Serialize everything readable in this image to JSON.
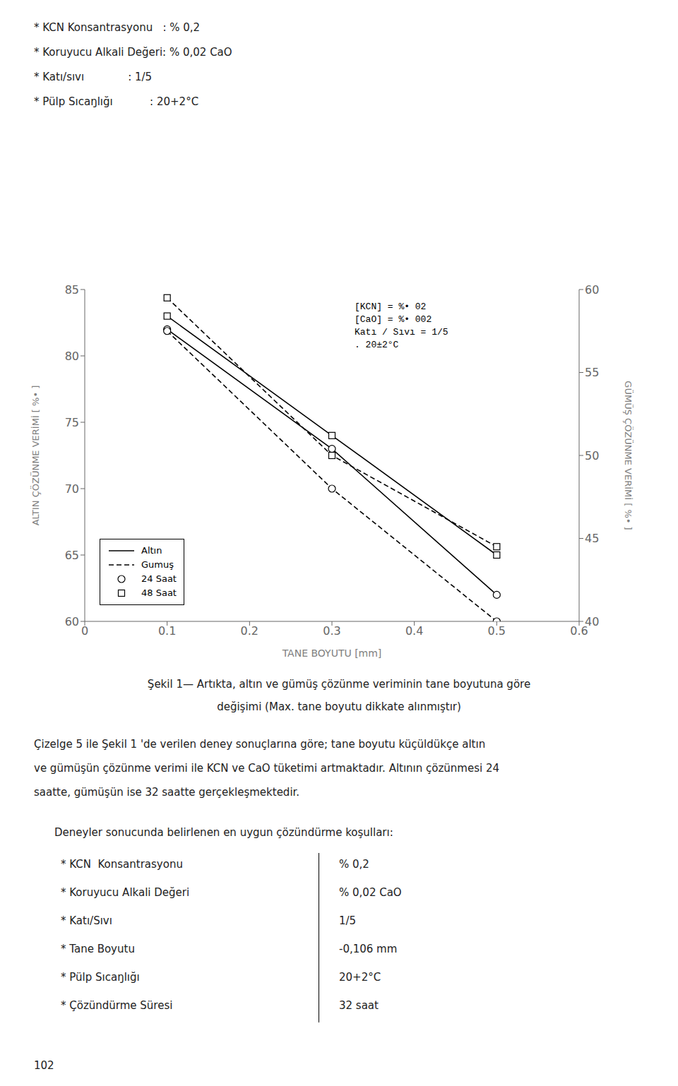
{
  "chart_data": {
    "type": "line",
    "xlabel": "TANE   BOYUTU   [mm]",
    "ylabel": "ALTIN ÇÖZÜNME  VERİMİ  [ %• ]",
    "y2label": "GÜMÜŞ ÇÖZÜNME VERİMİ  [ %• ]",
    "xlim": [
      0,
      0.6
    ],
    "xticks": [
      0,
      0.1,
      0.2,
      0.3,
      0.4,
      0.5,
      0.6
    ],
    "ylim": [
      60,
      85
    ],
    "yticks": [
      60,
      65,
      70,
      75,
      80,
      85
    ],
    "y2lim": [
      40,
      60
    ],
    "y2ticks": [
      40,
      45,
      50,
      55,
      60
    ],
    "grid": false,
    "legend": "lower left",
    "series": [
      {
        "x": [
          0.1,
          0.3,
          0.5
        ],
        "values": [
          83.0,
          74.0,
          65.0
        ],
        "axis": "y",
        "color": "#000000",
        "marker": "square",
        "line_style": "solid"
      },
      {
        "x": [
          0.1,
          0.3,
          0.5
        ],
        "values": [
          82.0,
          73.0,
          62.0
        ],
        "axis": "y",
        "color": "#000000",
        "marker": "circle",
        "line_style": "solid"
      },
      {
        "x": [
          0.1,
          0.3,
          0.5
        ],
        "values": [
          59.5,
          50.0,
          44.5
        ],
        "axis": "y2",
        "color": "#000000",
        "marker": "square",
        "line_style": "dashed"
      },
      {
        "x": [
          0.1,
          0.3,
          0.5
        ],
        "values": [
          57.5,
          48.0,
          40.0
        ],
        "axis": "y2",
        "color": "#000000",
        "marker": "circle",
        "line_style": "dashed"
      }
    ],
    "legend_entries": [
      {
        "name": "Altın",
        "line_style": "solid"
      },
      {
        "name": "Gumuş",
        "line_style": "dashed"
      },
      {
        "name": "24 Saat",
        "marker": "circle"
      },
      {
        "name": "48 Saat",
        "marker": "square"
      }
    ],
    "annotations": [
      "[KCN] = %• 02",
      "[CaO] = %• 002",
      "Katı / Sıvı = 1/5",
      ". 20±2°C"
    ]
  },
  "header_lines": [
    "* KCN Konsantrasyonu   : % 0,2",
    "* Koruyucu Alkali Değeri: % 0,02 CaO",
    "* Katı/sıvı             : 1/5",
    "* Pülp Sıcaŋlığı           : 20+2°C"
  ],
  "caption": [
    "Şekil 1— Artıkta, altın ve gümüş çözünme veriminin tane boyutuna göre",
    "değişimi (Max. tane boyutu dikkate alınmıştır)"
  ],
  "body_text": [
    "Çizelge 5 ile Şekil 1 'de verilen deney sonuçlarına göre; tane boyutu küçüldükçe altın",
    "ve gümüşün çözünme verimi ile KCN ve CaO tüketimi artmaktadır. Altının çözünmesi 24",
    "saatte, gümüşün ise 32 saatte gerçekleşmektedir."
  ],
  "conditions_title": "Deneyler sonucunda belirlenen en uygun çözündürme koşulları:",
  "conditions": [
    [
      "* KCN  Konsantrasyonu",
      "% 0,2"
    ],
    [
      "* Koruyucu Alkali Değeri",
      "% 0,02 CaO"
    ],
    [
      "* Katı/Sıvı",
      "1/5"
    ],
    [
      "* Tane Boyutu",
      "-0,106 mm"
    ],
    [
      "* Pülp Sıcaŋlığı",
      "20+2°C"
    ],
    [
      "* Çözündürme Süresi",
      "32 saat"
    ]
  ],
  "page_number": "102"
}
